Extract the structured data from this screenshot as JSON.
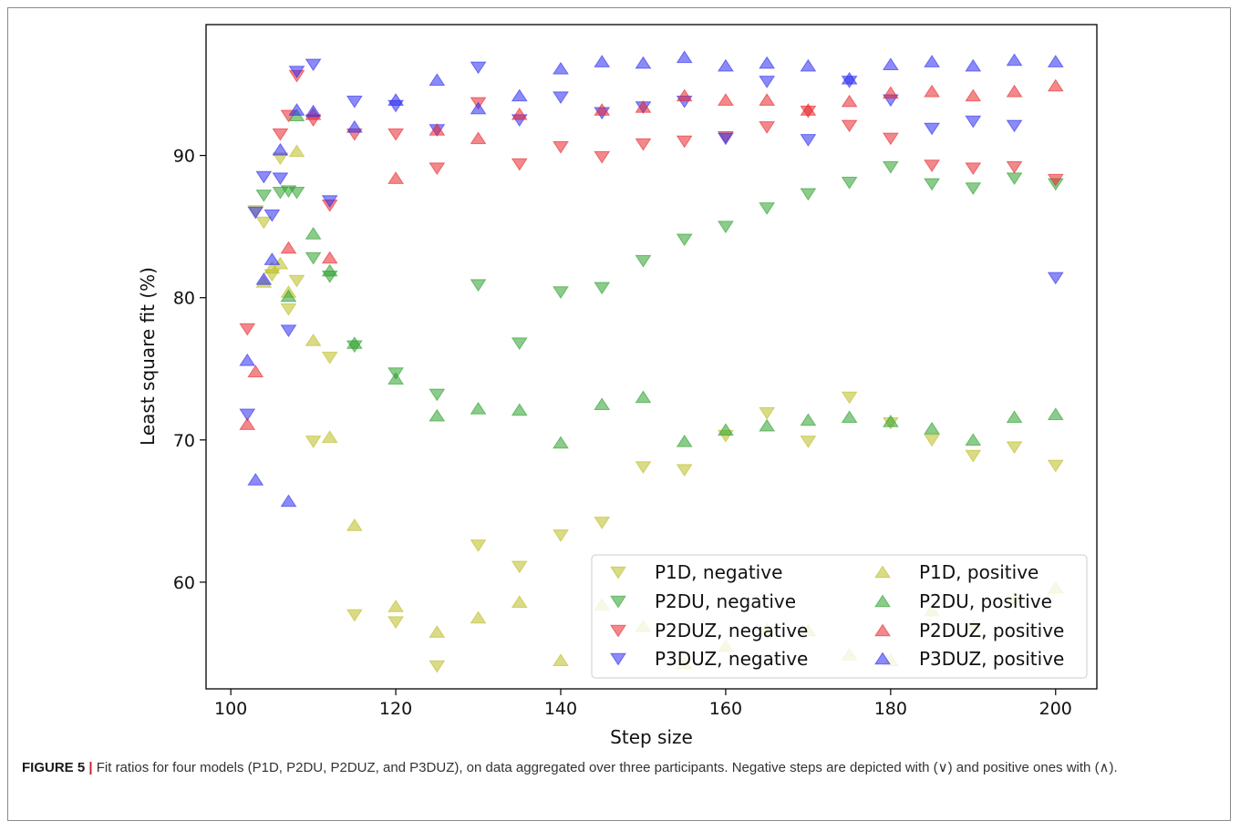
{
  "chart_data": {
    "type": "scatter",
    "xlabel": "Step size",
    "ylabel": "Least square fit (%)",
    "xlim": [
      97,
      205
    ],
    "ylim": [
      52.5,
      99.2
    ],
    "xticks": [
      100,
      120,
      140,
      160,
      180,
      200
    ],
    "yticks": [
      60,
      70,
      80,
      90
    ],
    "grid": false,
    "legend_placement": "lower-right",
    "series": [
      {
        "name": "P1D, negative",
        "marker": "triangle-down",
        "color": "#bcbd22",
        "x": [
          103,
          104,
          105,
          106,
          107,
          108,
          110,
          112,
          115,
          120,
          125,
          130,
          135,
          140,
          145,
          150,
          155,
          160,
          165,
          170,
          175,
          180,
          185,
          190,
          195,
          200
        ],
        "y": [
          86.1,
          85.3,
          81.6,
          89.8,
          79.2,
          81.2,
          69.9,
          75.8,
          57.7,
          57.2,
          54.1,
          62.6,
          61.1,
          63.3,
          64.2,
          68.1,
          67.9,
          70.3,
          71.9,
          69.9,
          73.0,
          71.2,
          70.0,
          68.9,
          69.5,
          68.2
        ]
      },
      {
        "name": "P2DU, negative",
        "marker": "triangle-down",
        "color": "#2ca02c",
        "x": [
          104,
          106,
          107,
          108,
          110,
          112,
          115,
          120,
          125,
          130,
          135,
          140,
          145,
          150,
          155,
          160,
          165,
          170,
          175,
          180,
          185,
          190,
          195,
          200
        ],
        "y": [
          87.2,
          87.4,
          87.5,
          87.4,
          82.8,
          81.5,
          76.6,
          74.7,
          73.2,
          80.9,
          76.8,
          80.4,
          80.7,
          82.6,
          84.1,
          85.0,
          86.3,
          87.3,
          88.1,
          89.2,
          88.0,
          87.7,
          88.4,
          88.0
        ]
      },
      {
        "name": "P2DUZ, negative",
        "marker": "triangle-down",
        "color": "#e8272b",
        "x": [
          102,
          106,
          107,
          108,
          110,
          112,
          115,
          120,
          125,
          130,
          135,
          140,
          145,
          150,
          155,
          160,
          165,
          170,
          175,
          180,
          185,
          190,
          195,
          200
        ],
        "y": [
          77.8,
          91.5,
          92.8,
          95.6,
          92.5,
          86.5,
          91.5,
          91.5,
          89.1,
          93.7,
          89.4,
          90.6,
          89.9,
          90.8,
          91.0,
          91.3,
          92.0,
          93.1,
          92.1,
          91.2,
          89.3,
          89.1,
          89.2,
          88.3
        ]
      },
      {
        "name": "P3DUZ, negative",
        "marker": "triangle-down",
        "color": "#2b2bf0",
        "x": [
          102,
          103,
          104,
          105,
          106,
          107,
          108,
          110,
          112,
          115,
          120,
          125,
          130,
          135,
          140,
          145,
          150,
          155,
          160,
          165,
          170,
          175,
          180,
          185,
          190,
          195,
          200
        ],
        "y": [
          71.8,
          86.0,
          88.5,
          85.8,
          88.4,
          77.7,
          95.9,
          96.4,
          86.8,
          93.8,
          93.5,
          91.8,
          96.2,
          92.5,
          94.1,
          93.0,
          93.4,
          93.8,
          91.2,
          95.2,
          91.1,
          95.2,
          93.9,
          91.9,
          92.4,
          92.1,
          81.4
        ]
      },
      {
        "name": "P1D, positive",
        "marker": "triangle-up",
        "color": "#bcbd22",
        "x": [
          104,
          105,
          106,
          107,
          108,
          110,
          112,
          115,
          120,
          125,
          130,
          135,
          140,
          145,
          150,
          155,
          160,
          165,
          170,
          175,
          180,
          185,
          190,
          195,
          200
        ],
        "y": [
          81.1,
          82.1,
          82.4,
          80.4,
          90.3,
          77.0,
          70.2,
          64.0,
          58.3,
          56.5,
          57.5,
          58.6,
          54.5,
          58.4,
          56.9,
          54.3,
          55.5,
          56.7,
          56.6,
          54.9,
          54.5,
          58.0,
          56.9,
          58.9,
          59.6
        ]
      },
      {
        "name": "P2DU, positive",
        "marker": "triangle-up",
        "color": "#2ca02c",
        "x": [
          107,
          108,
          110,
          112,
          115,
          120,
          125,
          130,
          135,
          140,
          145,
          150,
          155,
          160,
          165,
          170,
          175,
          180,
          185,
          190,
          195,
          200
        ],
        "y": [
          80.1,
          92.8,
          84.5,
          81.9,
          76.8,
          74.3,
          71.7,
          72.2,
          72.1,
          69.8,
          72.5,
          73.0,
          69.9,
          70.7,
          71.0,
          71.4,
          71.6,
          71.3,
          70.8,
          70.0,
          71.6,
          71.8
        ]
      },
      {
        "name": "P2DUZ, positive",
        "marker": "triangle-up",
        "color": "#e8272b",
        "x": [
          102,
          103,
          107,
          110,
          112,
          120,
          125,
          130,
          135,
          145,
          150,
          155,
          160,
          165,
          170,
          175,
          180,
          185,
          190,
          195,
          200
        ],
        "y": [
          71.1,
          74.8,
          83.5,
          92.9,
          82.8,
          88.4,
          91.8,
          91.2,
          92.9,
          93.2,
          93.4,
          94.2,
          93.9,
          93.9,
          93.2,
          93.8,
          94.4,
          94.5,
          94.2,
          94.5,
          94.9
        ]
      },
      {
        "name": "P3DUZ, positive",
        "marker": "triangle-up",
        "color": "#2b2bf0",
        "x": [
          102,
          103,
          104,
          105,
          106,
          107,
          108,
          110,
          115,
          120,
          125,
          130,
          135,
          140,
          145,
          150,
          155,
          160,
          165,
          170,
          175,
          180,
          185,
          190,
          195,
          200
        ],
        "y": [
          75.6,
          67.2,
          81.3,
          82.7,
          90.4,
          65.7,
          93.2,
          93.1,
          92.0,
          93.9,
          95.3,
          93.3,
          94.2,
          96.1,
          96.6,
          96.5,
          96.9,
          96.3,
          96.5,
          96.3,
          95.4,
          96.4,
          96.6,
          96.3,
          96.7,
          96.6
        ]
      }
    ]
  },
  "caption": {
    "label": "FIGURE 5",
    "separator": "|",
    "text": "Fit ratios for four models (P1D, P2DU, P2DUZ, and P3DUZ), on data aggregated over three participants. Negative steps are depicted with (∨) and positive ones with (∧)."
  }
}
